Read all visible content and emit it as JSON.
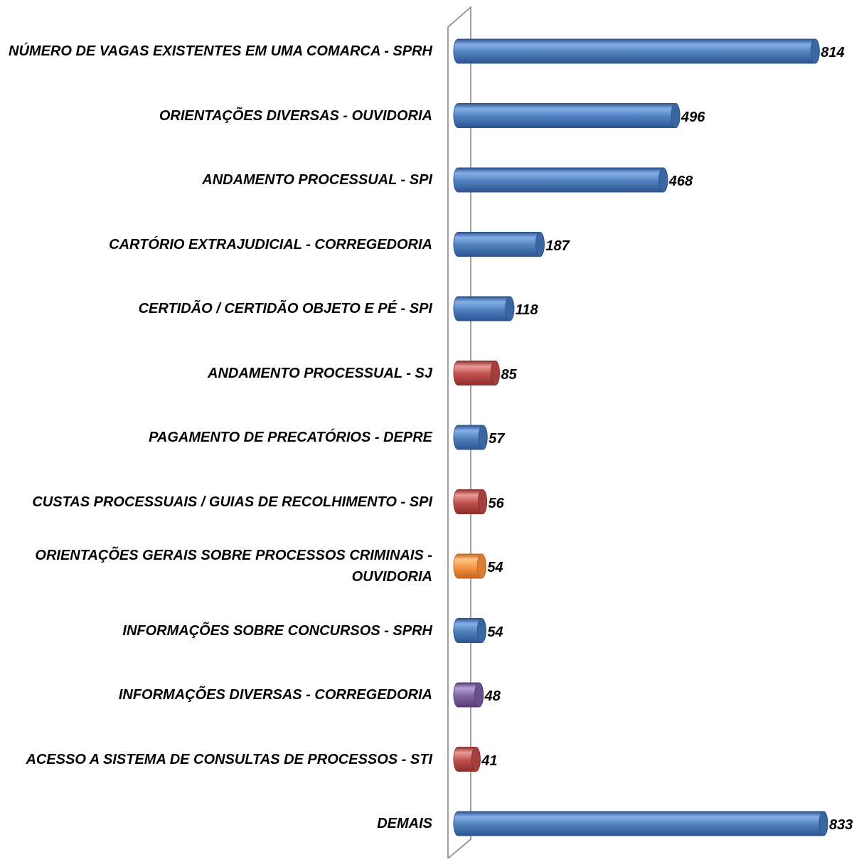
{
  "chart_data": {
    "type": "bar",
    "orientation": "horizontal",
    "style": "3d-cylinder",
    "title": "",
    "xlabel": "",
    "ylabel": "",
    "grid": false,
    "legend": "none",
    "xlim": [
      0,
      833
    ],
    "categories": [
      "NÚMERO DE VAGAS EXISTENTES EM UMA COMARCA - SPRH",
      "ORIENTAÇÕES DIVERSAS - OUVIDORIA",
      "ANDAMENTO PROCESSUAL - SPI",
      "CARTÓRIO EXTRAJUDICIAL - CORREGEDORIA",
      "CERTIDÃO / CERTIDÃO OBJETO E PÉ - SPI",
      "ANDAMENTO PROCESSUAL - SJ",
      "PAGAMENTO DE PRECATÓRIOS - DEPRE",
      "CUSTAS PROCESSUAIS / GUIAS DE RECOLHIMENTO - SPI",
      "ORIENTAÇÕES GERAIS SOBRE PROCESSOS CRIMINAIS - OUVIDORIA",
      "INFORMAÇÕES SOBRE CONCURSOS - SPRH",
      "INFORMAÇÕES DIVERSAS - CORREGEDORIA",
      "ACESSO A SISTEMA DE CONSULTAS DE PROCESSOS - STI",
      "DEMAIS"
    ],
    "values": [
      814,
      496,
      468,
      187,
      118,
      85,
      57,
      56,
      54,
      54,
      48,
      41,
      833
    ],
    "value_labels": [
      "814",
      "496",
      "468",
      "187",
      "118",
      "85",
      "57",
      "56",
      "54",
      "54",
      "48",
      "41",
      "833"
    ],
    "bar_colors": [
      "blue",
      "blue",
      "blue",
      "blue",
      "blue",
      "red",
      "blue",
      "red",
      "orange",
      "blue",
      "purple",
      "red",
      "blue"
    ]
  },
  "palette": {
    "blue": {
      "light": "#86AEE6",
      "mid": "#4F81BD",
      "dark": "#2C5491",
      "cap": "#3A679F"
    },
    "red": {
      "light": "#E89B98",
      "mid": "#C0504D",
      "dark": "#8E2E2B",
      "cap": "#A33F3C"
    },
    "orange": {
      "light": "#FBC68B",
      "mid": "#F79646",
      "dark": "#C1651E",
      "cap": "#D97D32"
    },
    "purple": {
      "light": "#B8A0D6",
      "mid": "#8064A2",
      "dark": "#553E74",
      "cap": "#6A5088"
    },
    "axis": "#808080"
  }
}
